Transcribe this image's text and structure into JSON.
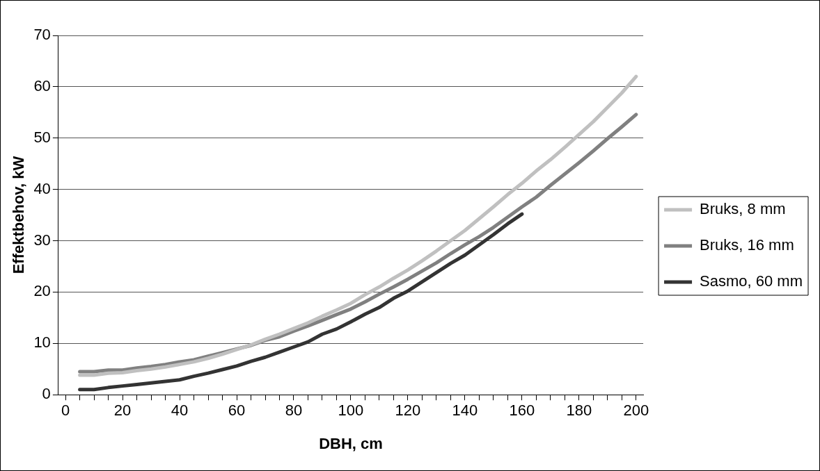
{
  "chart_data": {
    "type": "line",
    "xlabel": "DBH, cm",
    "ylabel": "Effektbehov, kW",
    "x": [
      5,
      10,
      15,
      20,
      25,
      30,
      35,
      40,
      45,
      50,
      55,
      60,
      65,
      70,
      75,
      80,
      85,
      90,
      95,
      100,
      105,
      110,
      115,
      120,
      125,
      130,
      135,
      140,
      145,
      150,
      155,
      160,
      165,
      170,
      175,
      180,
      185,
      190,
      195,
      200
    ],
    "series": [
      {
        "name": "Bruks, 8 mm",
        "color": "#c0c0c0",
        "values": [
          3.8,
          3.8,
          4.2,
          4.3,
          4.7,
          5.0,
          5.4,
          5.9,
          6.4,
          7.1,
          7.9,
          8.8,
          9.7,
          10.8,
          11.8,
          12.9,
          14.0,
          15.3,
          16.5,
          17.8,
          19.5,
          21.0,
          22.7,
          24.3,
          26.1,
          28.0,
          30.0,
          32.0,
          34.3,
          36.6,
          39.0,
          41.2,
          43.6,
          45.8,
          48.2,
          50.7,
          53.2,
          56.0,
          58.8,
          62.0
        ]
      },
      {
        "name": "Bruks, 16 mm",
        "color": "#808080",
        "values": [
          4.5,
          4.5,
          4.8,
          4.8,
          5.2,
          5.5,
          5.9,
          6.4,
          6.8,
          7.5,
          8.2,
          8.9,
          9.6,
          10.6,
          11.3,
          12.4,
          13.4,
          14.5,
          15.6,
          16.7,
          18.1,
          19.6,
          21.0,
          22.5,
          24.1,
          25.7,
          27.5,
          29.2,
          30.8,
          32.6,
          34.6,
          36.6,
          38.5,
          40.8,
          43.0,
          45.2,
          47.5,
          49.9,
          52.2,
          54.6
        ]
      },
      {
        "name": "Sasmo, 60 mm",
        "color": "#333333",
        "values": [
          1.0,
          1.0,
          1.4,
          1.7,
          2.0,
          2.3,
          2.6,
          2.9,
          3.6,
          4.2,
          4.9,
          5.6,
          6.5,
          7.3,
          8.3,
          9.3,
          10.3,
          11.8,
          12.8,
          14.2,
          15.7,
          17.0,
          18.8,
          20.2,
          22.0,
          23.8,
          25.6,
          27.2,
          29.2,
          31.2,
          33.3,
          35.2,
          null,
          null,
          null,
          null,
          null,
          null,
          null,
          null
        ]
      }
    ],
    "xlim": [
      -2.5,
      202.5
    ],
    "xticks": [
      0,
      {
        "value": 5,
        "label": null
      },
      {
        "value": 10,
        "label": null
      },
      {
        "value": 15,
        "label": null
      },
      20,
      {
        "value": 25,
        "label": null
      },
      {
        "value": 30,
        "label": null
      },
      {
        "value": 35,
        "label": null
      },
      40,
      {
        "value": 45,
        "label": null
      },
      {
        "value": 50,
        "label": null
      },
      {
        "value": 55,
        "label": null
      },
      60,
      {
        "value": 65,
        "label": null
      },
      {
        "value": 70,
        "label": null
      },
      {
        "value": 75,
        "label": null
      },
      80,
      {
        "value": 85,
        "label": null
      },
      {
        "value": 90,
        "label": null
      },
      {
        "value": 95,
        "label": null
      },
      100,
      {
        "value": 105,
        "label": null
      },
      {
        "value": 110,
        "label": null
      },
      {
        "value": 115,
        "label": null
      },
      120,
      {
        "value": 125,
        "label": null
      },
      {
        "value": 130,
        "label": null
      },
      {
        "value": 135,
        "label": null
      },
      140,
      {
        "value": 145,
        "label": null
      },
      {
        "value": 150,
        "label": null
      },
      {
        "value": 155,
        "label": null
      },
      160,
      {
        "value": 165,
        "label": null
      },
      {
        "value": 170,
        "label": null
      },
      {
        "value": 175,
        "label": null
      },
      180,
      {
        "value": 185,
        "label": null
      },
      {
        "value": 190,
        "label": null
      },
      {
        "value": 195,
        "label": null
      },
      200
    ],
    "ylim": [
      0,
      70
    ],
    "yticks": [
      0,
      10,
      20,
      30,
      40,
      50,
      60,
      70
    ],
    "grid": "y",
    "legend": "right",
    "marker": "none",
    "line_style": "solid"
  }
}
